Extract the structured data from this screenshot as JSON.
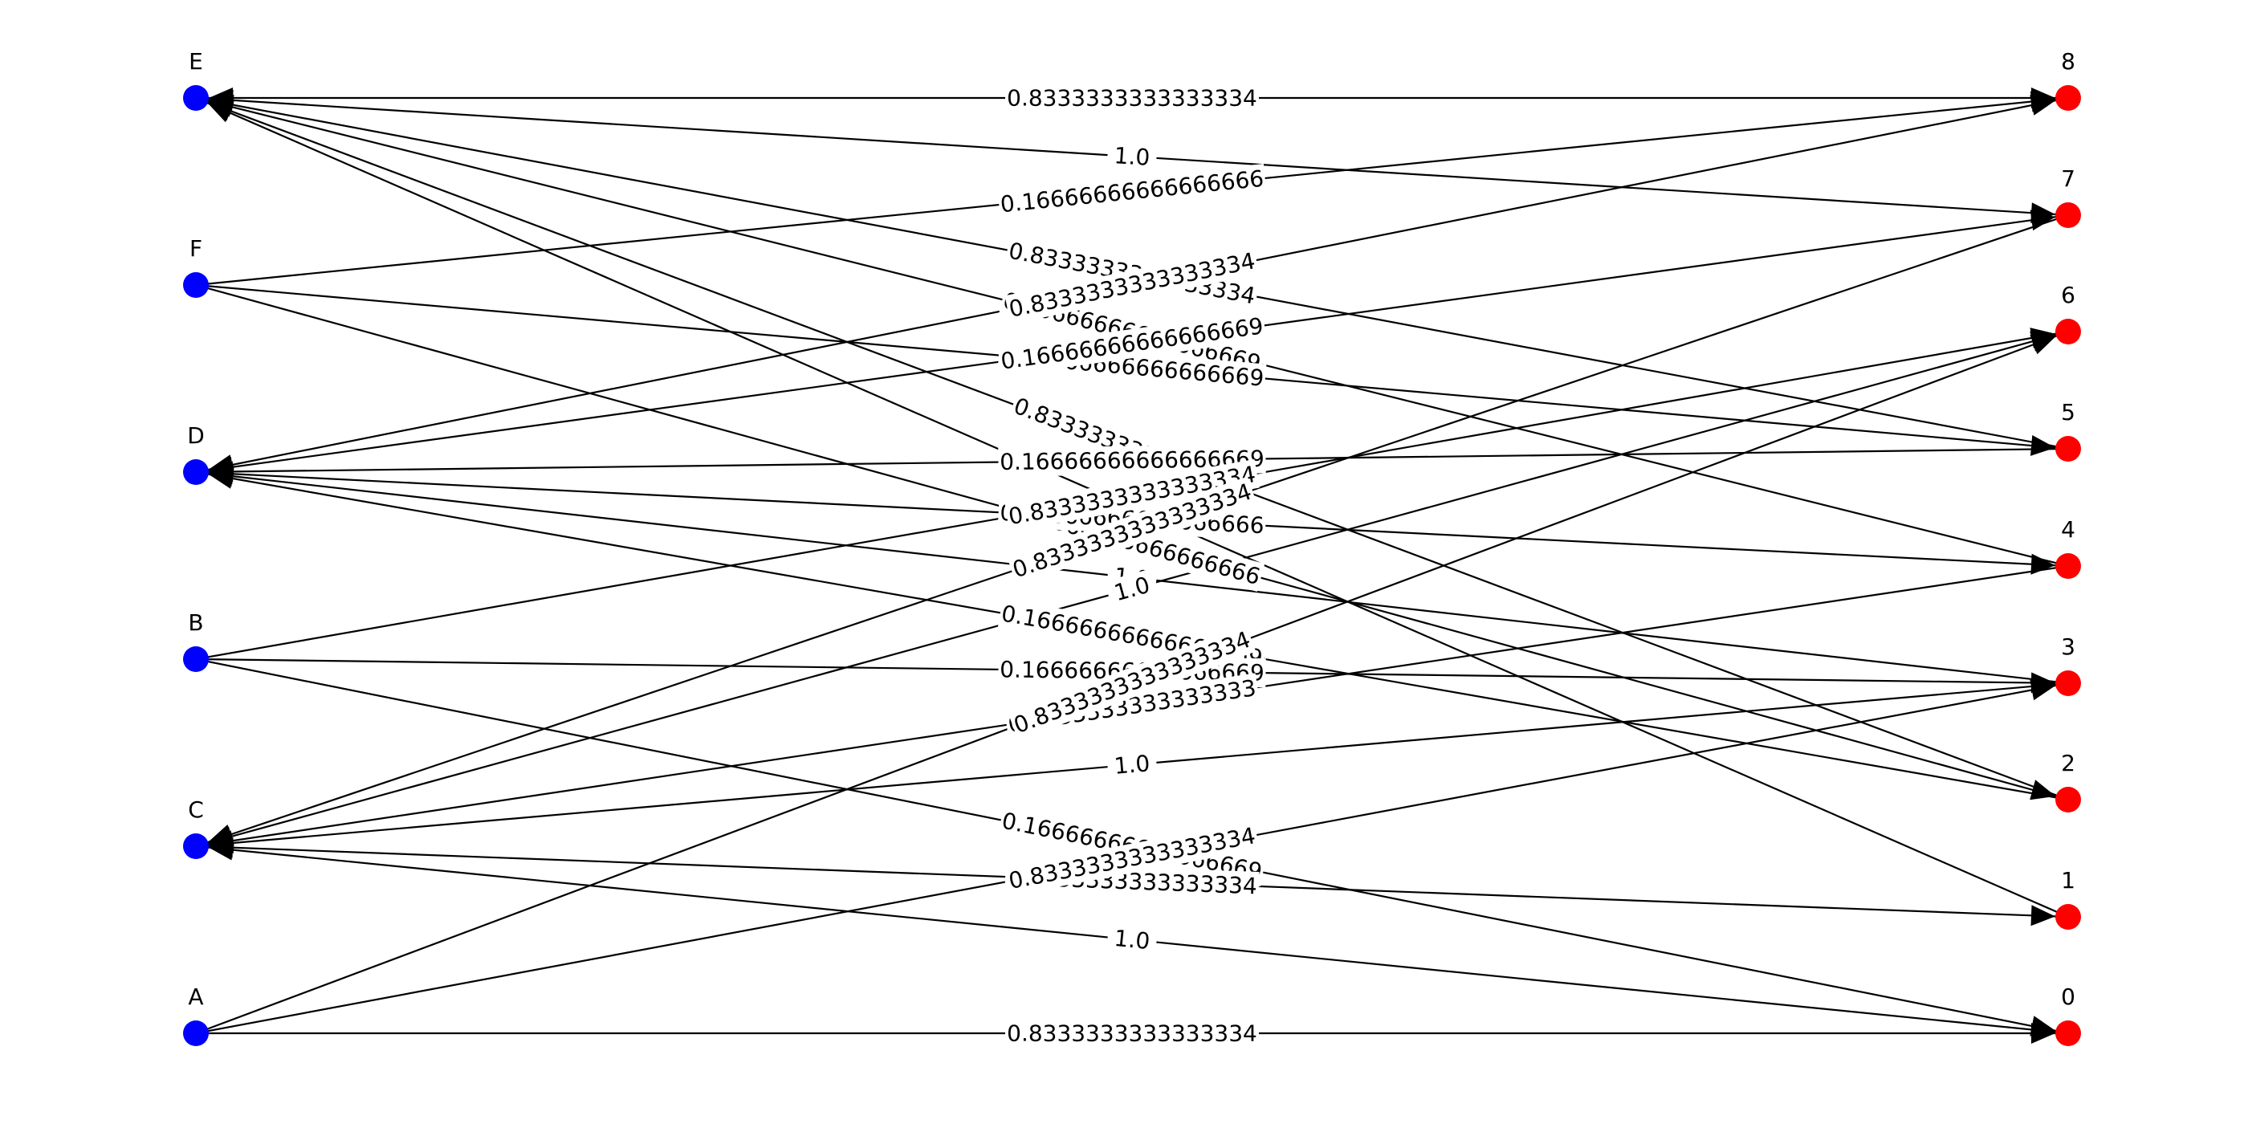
{
  "diagram": {
    "type": "bipartite-directed-graph",
    "colors": {
      "left_nodes": "#0000ff",
      "right_nodes": "#ff0000",
      "edges": "#000000"
    },
    "left_nodes": [
      "E",
      "F",
      "D",
      "B",
      "C",
      "A"
    ],
    "right_nodes": [
      "8",
      "7",
      "6",
      "5",
      "4",
      "3",
      "2",
      "1",
      "0"
    ],
    "edges": [
      {
        "source": "E",
        "target": "8",
        "label": "0.8333333333333334",
        "direction": "both"
      },
      {
        "source": "E",
        "target": "7",
        "label": "1.0",
        "direction": "both"
      },
      {
        "source": "E",
        "target": "5",
        "label": "0.8333333333333334",
        "direction": "to_left"
      },
      {
        "source": "E",
        "target": "4",
        "label": "0.16666666666666669",
        "direction": "to_left"
      },
      {
        "source": "E",
        "target": "2",
        "label": "0.8333333333333334",
        "direction": "to_left"
      },
      {
        "source": "E",
        "target": "1",
        "label": "1.0",
        "direction": "to_left"
      },
      {
        "source": "F",
        "target": "8",
        "label": "0.16666666666666666",
        "direction": "to_right"
      },
      {
        "source": "F",
        "target": "5",
        "label": "0.16666666666666669",
        "direction": "to_right"
      },
      {
        "source": "F",
        "target": "2",
        "label": "0.16666666666666666",
        "direction": "to_right"
      },
      {
        "source": "D",
        "target": "8",
        "label": "0.8333333333333334",
        "direction": "both"
      },
      {
        "source": "D",
        "target": "7",
        "label": "0.16666666666666669",
        "direction": "both"
      },
      {
        "source": "D",
        "target": "5",
        "label": "0.16666666666666669",
        "direction": "to_left"
      },
      {
        "source": "D",
        "target": "4",
        "label": "0.16666666666666666",
        "direction": "both"
      },
      {
        "source": "D",
        "target": "3",
        "label": "1.0",
        "direction": "to_left"
      },
      {
        "source": "D",
        "target": "2",
        "label": "0.16666666666666669",
        "direction": "to_left"
      },
      {
        "source": "B",
        "target": "6",
        "label": "0.8333333333333334",
        "direction": "to_right"
      },
      {
        "source": "B",
        "target": "3",
        "label": "0.16666666666666669",
        "direction": "to_right"
      },
      {
        "source": "B",
        "target": "0",
        "label": "0.16666666666666669",
        "direction": "to_right"
      },
      {
        "source": "C",
        "target": "7",
        "label": "0.8333333333333334",
        "direction": "to_left"
      },
      {
        "source": "C",
        "target": "6",
        "label": "1.0",
        "direction": "both"
      },
      {
        "source": "C",
        "target": "4",
        "label": "0.8333333333333333",
        "direction": "to_left"
      },
      {
        "source": "C",
        "target": "3",
        "label": "1.0",
        "direction": "to_left"
      },
      {
        "source": "C",
        "target": "1",
        "label": "0.8333333333333334",
        "direction": "both"
      },
      {
        "source": "C",
        "target": "0",
        "label": "1.0",
        "direction": "to_left"
      },
      {
        "source": "A",
        "target": "6",
        "label": "0.8333333333333334",
        "direction": "to_right"
      },
      {
        "source": "A",
        "target": "3",
        "label": "0.8333333333333334",
        "direction": "to_right"
      },
      {
        "source": "A",
        "target": "0",
        "label": "0.8333333333333334",
        "direction": "to_right"
      }
    ]
  }
}
